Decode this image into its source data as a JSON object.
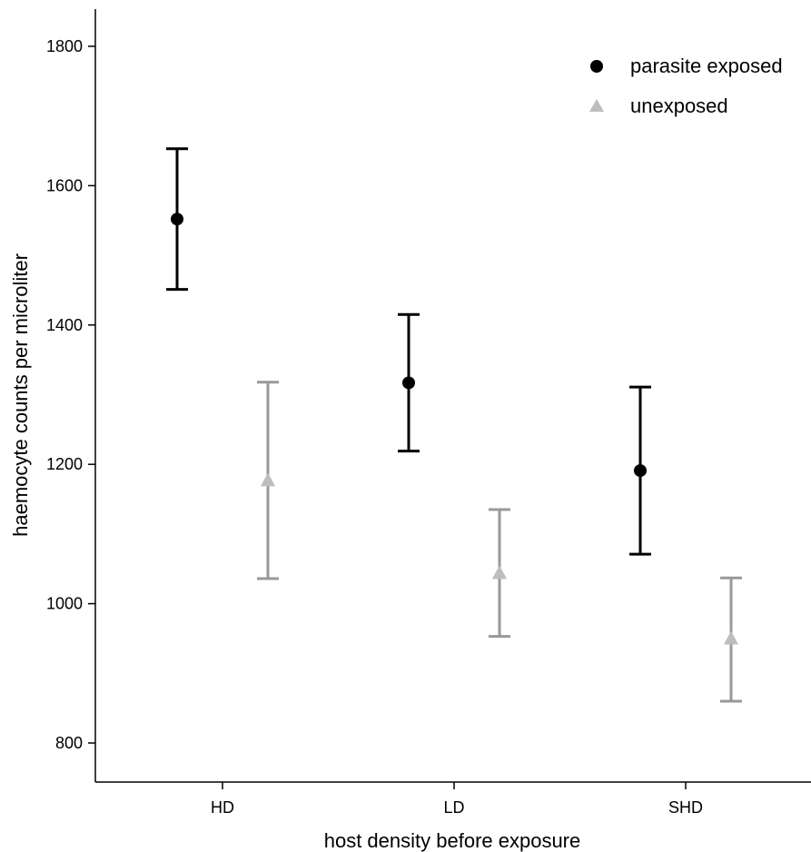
{
  "chart_data": {
    "type": "errorbar",
    "xlabel": "host density before exposure",
    "ylabel": "haemocyte counts per microliter",
    "categories": [
      "HD",
      "LD",
      "SHD"
    ],
    "ylim": [
      740,
      1860
    ],
    "yticks": [
      800,
      1000,
      1200,
      1400,
      1600,
      1800
    ],
    "grid": false,
    "legend_position": "top-right",
    "series": [
      {
        "name": "parasite exposed",
        "marker": "circle",
        "color": "#000000",
        "means": [
          1552,
          1317,
          1191
        ],
        "lower": [
          1451,
          1219,
          1071
        ],
        "upper": [
          1653,
          1415,
          1311
        ]
      },
      {
        "name": "unexposed",
        "marker": "triangle",
        "color": "#bdbdbd",
        "bar_color": "#999999",
        "means": [
          1177,
          1044,
          950
        ],
        "lower": [
          1036,
          953,
          860
        ],
        "upper": [
          1318,
          1135,
          1037
        ]
      }
    ]
  }
}
